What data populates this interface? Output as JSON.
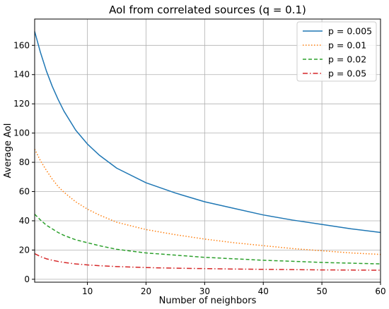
{
  "chart_data": {
    "type": "line",
    "title": "AoI from correlated sources (q = 0.1)",
    "xlabel": "Number of neighbors",
    "ylabel": "Average AoI",
    "xlim": [
      1,
      60
    ],
    "ylim": [
      -2,
      178
    ],
    "xticks": [
      10,
      20,
      30,
      40,
      50,
      60
    ],
    "yticks": [
      0,
      20,
      40,
      60,
      80,
      100,
      120,
      140,
      160
    ],
    "grid": true,
    "legend_position": "top-right",
    "series": [
      {
        "name": "p = 0.005",
        "color": "#1f77b4",
        "dash": "solid",
        "x": [
          1,
          2,
          3,
          4,
          5,
          6,
          8,
          10,
          12,
          15,
          20,
          25,
          30,
          35,
          40,
          45,
          50,
          55,
          60
        ],
        "values": [
          169.5,
          155,
          142.5,
          132,
          123,
          115,
          102,
          92.5,
          85,
          76,
          66,
          59,
          53,
          48.5,
          44,
          40.5,
          37.5,
          34.5,
          32
        ]
      },
      {
        "name": "p = 0.01",
        "color": "#ff7f0e",
        "dash": "dotted",
        "x": [
          1,
          2,
          3,
          4,
          5,
          6,
          8,
          10,
          12,
          15,
          20,
          25,
          30,
          35,
          40,
          45,
          50,
          55,
          60
        ],
        "values": [
          89,
          81,
          74.5,
          68.5,
          63.5,
          59.5,
          53,
          48,
          44,
          39,
          34,
          30.5,
          27.5,
          25,
          23,
          21,
          19.5,
          18,
          17
        ]
      },
      {
        "name": "p = 0.02",
        "color": "#2ca02c",
        "dash": "dashed",
        "x": [
          1,
          2,
          3,
          4,
          5,
          6,
          8,
          10,
          12,
          15,
          20,
          25,
          30,
          35,
          40,
          45,
          50,
          55,
          60
        ],
        "values": [
          44.5,
          40.5,
          37,
          34.5,
          32,
          30,
          27,
          25,
          23,
          20.5,
          18,
          16.5,
          15,
          14,
          13,
          12.3,
          11.5,
          11,
          10.5
        ]
      },
      {
        "name": "p = 0.05",
        "color": "#d62728",
        "dash": "dashdot",
        "x": [
          1,
          2,
          3,
          4,
          5,
          6,
          8,
          10,
          12,
          15,
          20,
          25,
          30,
          35,
          40,
          45,
          50,
          55,
          60
        ],
        "values": [
          17.5,
          15.5,
          14,
          13,
          12.2,
          11.5,
          10.5,
          9.8,
          9.3,
          8.7,
          8,
          7.6,
          7.3,
          7,
          6.8,
          6.6,
          6.4,
          6.3,
          6.2
        ]
      }
    ]
  }
}
